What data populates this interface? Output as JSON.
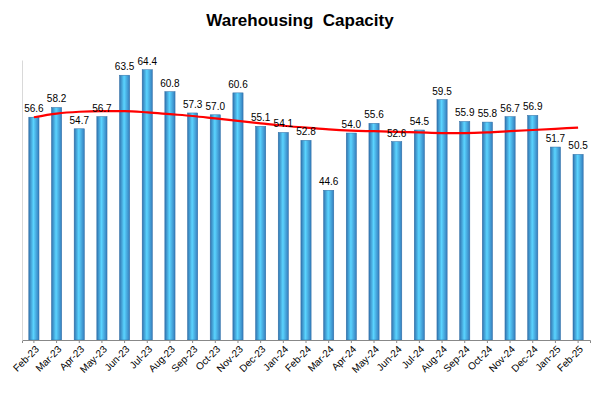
{
  "chart_data": {
    "type": "bar",
    "title": "Warehousing  Capacity",
    "categories": [
      "Feb-23",
      "Mar-23",
      "Apr-23",
      "May-23",
      "Jun-23",
      "Jul-23",
      "Aug-23",
      "Sep-23",
      "Oct-23",
      "Nov-23",
      "Dec-23",
      "Jan-24",
      "Feb-24",
      "Mar-24",
      "Apr-24",
      "May-24",
      "Jun-24",
      "Jul-24",
      "Aug-24",
      "Sep-24",
      "Oct-24",
      "Nov-24",
      "Dec-24",
      "Jan-25",
      "Feb-25"
    ],
    "series": [
      {
        "type": "bar",
        "color": "#3d8fd9",
        "values": [
          56.6,
          58.2,
          54.7,
          56.7,
          63.5,
          64.4,
          60.8,
          57.3,
          57.0,
          60.6,
          55.1,
          54.1,
          52.8,
          44.6,
          54.0,
          55.6,
          52.6,
          54.5,
          59.5,
          55.9,
          55.8,
          56.7,
          56.9,
          51.7,
          50.5
        ],
        "value_labels": [
          "56.6",
          "58.2",
          "54.7",
          "56.7",
          "63.5",
          "64.4",
          "60.8",
          "57.3",
          "57.0",
          "60.6",
          "55.1",
          "54.1",
          "52.8",
          "44.6",
          "54.0",
          "55.6",
          "52.6",
          "54.5",
          "59.5",
          "55.9",
          "55.8",
          "56.7",
          "56.9",
          "51.7",
          "50.5"
        ]
      },
      {
        "type": "line",
        "color": "#ff0000",
        "values": [
          56.6,
          57.2,
          57.5,
          57.6,
          57.6,
          57.4,
          57.1,
          56.8,
          56.4,
          56.0,
          55.6,
          55.2,
          54.9,
          54.6,
          54.4,
          54.3,
          54.2,
          54.1,
          54.0,
          54.0,
          54.1,
          54.3,
          54.5,
          54.7,
          54.9
        ]
      }
    ],
    "ylim": [
      20,
      66
    ],
    "tick_labels": "x",
    "grid": false,
    "data_labels": true
  }
}
